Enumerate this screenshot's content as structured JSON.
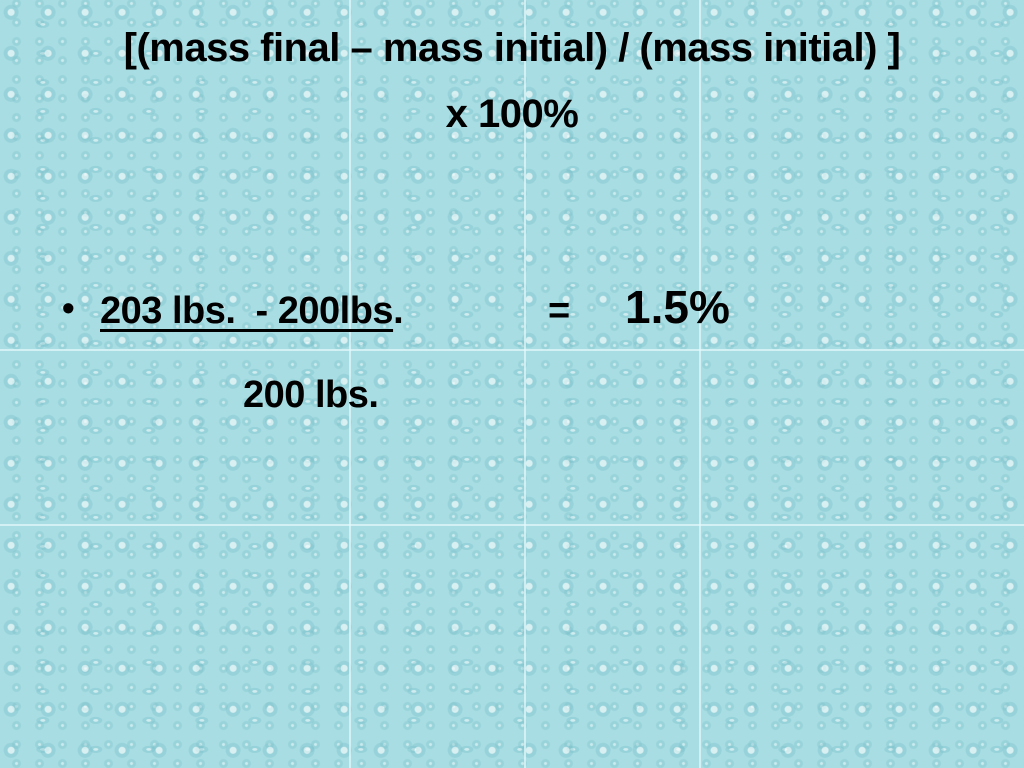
{
  "slide": {
    "title": [
      "[(mass final – mass initial) / (mass initial) ]",
      "x 100%"
    ],
    "bullet": {
      "numerator": "203 lbs.  - 200lbs",
      "numerator_end": ".",
      "equals": "=",
      "result": "1.5%",
      "denominator": "200 lbs."
    }
  }
}
